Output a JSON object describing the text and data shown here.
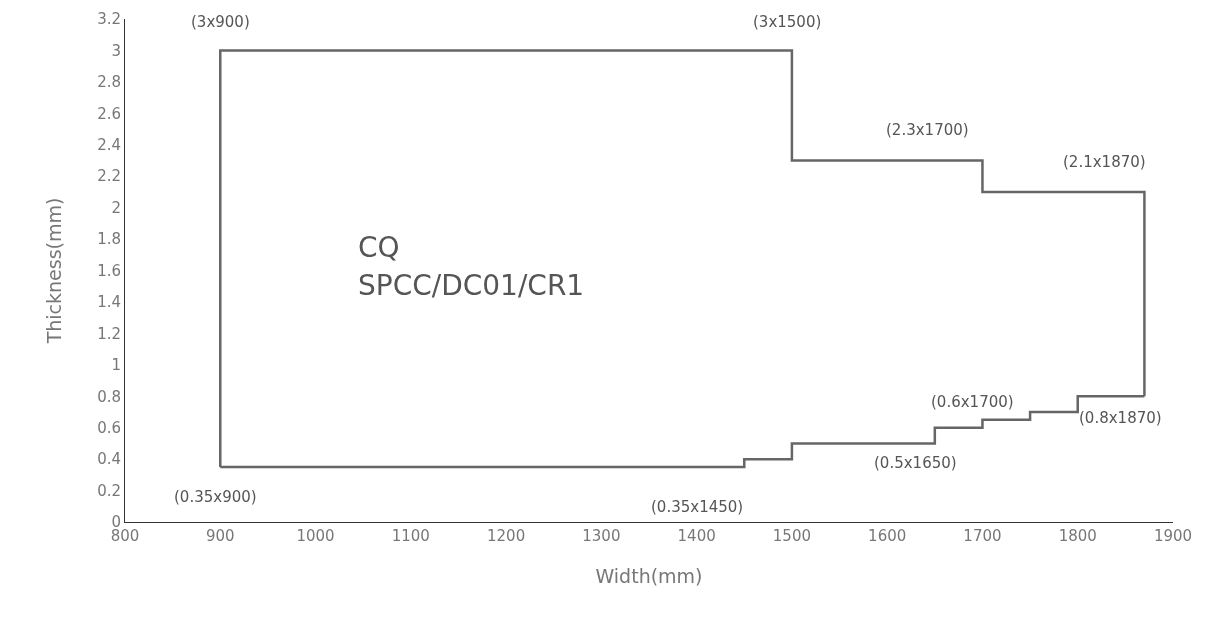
{
  "chart_data": {
    "type": "step",
    "xlabel": "Width(mm)",
    "ylabel": "Thickness(mm)",
    "series": [
      {
        "color": "#666666",
        "x": [
          900,
          900,
          1500,
          1700,
          1870,
          1870
        ],
        "values": [
          0.35,
          3,
          2.3,
          2.1,
          2.1,
          0.8
        ]
      },
      {
        "color": "#666666",
        "x": [
          900,
          1450,
          1500,
          1650,
          1700,
          1750,
          1800,
          1870
        ],
        "values": [
          0.35,
          0.4,
          0.5,
          0.6,
          0.65,
          0.7,
          0.8,
          0.8
        ]
      }
    ],
    "xlim": [
      800,
      1900
    ],
    "xticks": [
      800,
      900,
      1000,
      1100,
      1200,
      1300,
      1400,
      1500,
      1600,
      1700,
      1800,
      1900
    ],
    "ylim": [
      0,
      3.2
    ],
    "yticks": [
      0,
      0.2,
      0.4,
      0.6,
      0.8,
      1,
      1.2,
      1.4,
      1.6,
      1.8,
      2,
      2.2,
      2.4,
      2.6,
      2.8,
      3,
      3.2
    ],
    "grid": false,
    "line_style": "solid",
    "annotations": [
      {
        "text": "(3x900)",
        "x": 900,
        "y": 3
      },
      {
        "text": "(3x1500)",
        "x": 1500,
        "y": 3
      },
      {
        "text": "(2.3x1700)",
        "x": 1700,
        "y": 2.3
      },
      {
        "text": "(2.1x1870)",
        "x": 1870,
        "y": 2.1
      },
      {
        "text": "(0.35x900)",
        "x": 900,
        "y": 0.35
      },
      {
        "text": "(0.35x1450)",
        "x": 1450,
        "y": 0.35
      },
      {
        "text": "(0.5x1650)",
        "x": 1650,
        "y": 0.5
      },
      {
        "text": "(0.6x1700)",
        "x": 1700,
        "y": 0.6
      },
      {
        "text": "(0.8x1870)",
        "x": 1870,
        "y": 0.8
      },
      "CQ",
      "SPCC/DC01/CR1"
    ]
  }
}
